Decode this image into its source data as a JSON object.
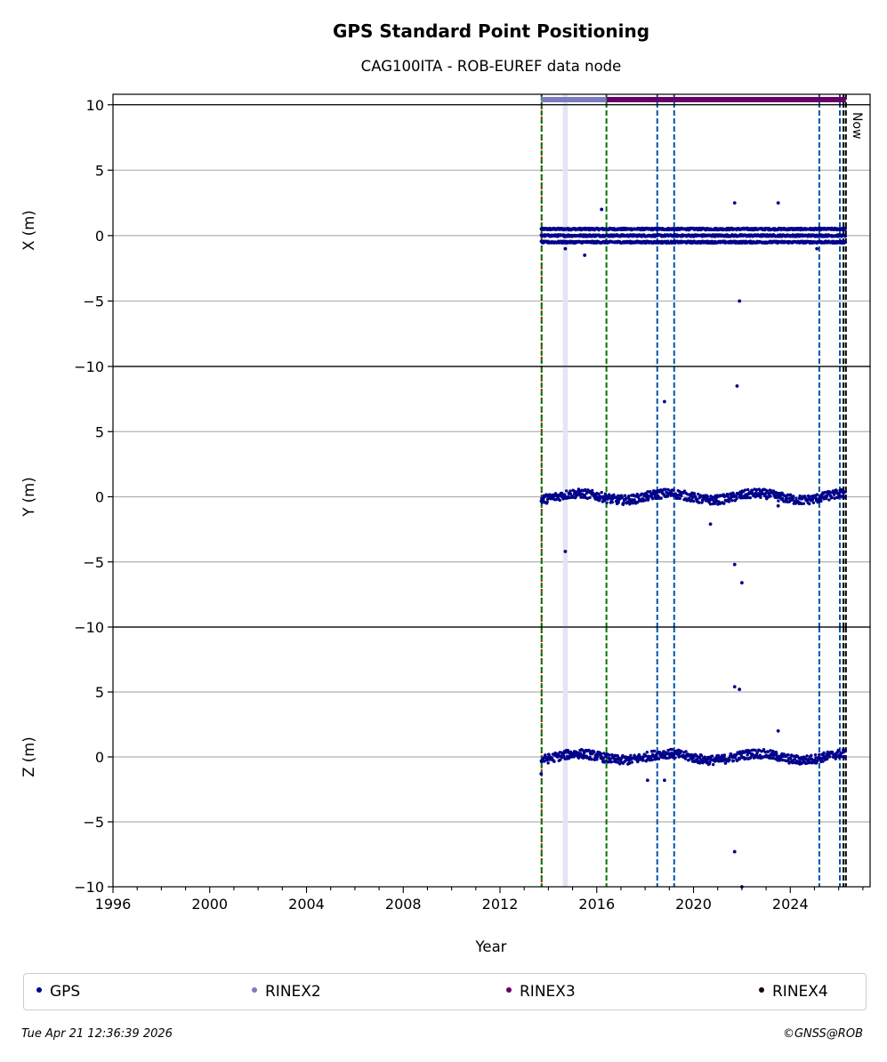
{
  "chart_data": {
    "type": "scatter",
    "title": "GPS Standard Point Positioning",
    "subtitle": "CAG100ITA - ROB-EUREF data node",
    "xlabel": "Year",
    "xlim": [
      1996,
      2027.3
    ],
    "x_ticks": [
      "1996",
      "2000",
      "2004",
      "2008",
      "2012",
      "2016",
      "2020",
      "2024"
    ],
    "now_label": "Now",
    "panels": [
      {
        "ylabel": "X (m)",
        "ylim": [
          -10,
          10.8
        ],
        "y_ticks": [
          "−10",
          "−5",
          "0",
          "5",
          "10"
        ],
        "cluster_levels": [
          0.5,
          0,
          -0.5
        ],
        "outliers": [
          [
            2014.7,
            -1.0
          ],
          [
            2015.5,
            -1.5
          ],
          [
            2016.2,
            2.0
          ],
          [
            2021.7,
            2.5
          ],
          [
            2021.9,
            -5.0
          ],
          [
            2023.5,
            2.5
          ],
          [
            2025.1,
            -1.0
          ]
        ]
      },
      {
        "ylabel": "Y (m)",
        "ylim": [
          -10,
          10
        ],
        "y_ticks": [
          "−10",
          "−5",
          "0",
          "5"
        ],
        "cluster_levels": [
          0
        ],
        "outliers": [
          [
            2014.7,
            -4.2
          ],
          [
            2018.8,
            7.3
          ],
          [
            2020.7,
            -2.1
          ],
          [
            2021.7,
            -5.2
          ],
          [
            2021.8,
            8.5
          ],
          [
            2022.0,
            -6.6
          ],
          [
            2023.5,
            -0.7
          ]
        ]
      },
      {
        "ylabel": "Z (m)",
        "ylim": [
          -10,
          10
        ],
        "y_ticks": [
          "−10",
          "−5",
          "0",
          "5"
        ],
        "cluster_levels": [
          0
        ],
        "outliers": [
          [
            2013.7,
            -1.3
          ],
          [
            2018.1,
            -1.8
          ],
          [
            2018.8,
            -1.8
          ],
          [
            2021.7,
            -7.3
          ],
          [
            2021.7,
            5.4
          ],
          [
            2021.9,
            5.2
          ],
          [
            2022.0,
            -10.0
          ],
          [
            2023.5,
            2.0
          ]
        ]
      }
    ],
    "gps_range": [
      2013.7,
      2026.3
    ],
    "rinex_bars": [
      {
        "name": "RINEX2",
        "start": 2013.7,
        "end": 2016.4,
        "color": "#7b7bbf"
      },
      {
        "name": "RINEX3",
        "start": 2016.4,
        "end": 2026.3,
        "color": "#660066"
      }
    ],
    "vlines": [
      {
        "x": 2013.72,
        "color": "#cc0000",
        "style": "dotted"
      },
      {
        "x": 2013.72,
        "color": "#007700",
        "style": "dashed"
      },
      {
        "x": 2016.4,
        "color": "#007700",
        "style": "dashed"
      },
      {
        "x": 2018.5,
        "color": "#0055aa",
        "style": "dashed"
      },
      {
        "x": 2019.2,
        "color": "#0055aa",
        "style": "dashed"
      },
      {
        "x": 2025.2,
        "color": "#0055aa",
        "style": "dashed"
      },
      {
        "x": 2026.05,
        "color": "#0055aa",
        "style": "dashed"
      },
      {
        "x": 2026.2,
        "color": "#000000",
        "style": "dashed"
      },
      {
        "x": 2026.3,
        "color": "#000000",
        "style": "dashed"
      }
    ],
    "shaded_span": [
      2014.6,
      2014.8
    ],
    "legend": [
      {
        "label": "GPS",
        "color": "#00008b"
      },
      {
        "label": "RINEX2",
        "color": "#7b7bbf"
      },
      {
        "label": "RINEX3",
        "color": "#660066"
      },
      {
        "label": "RINEX4",
        "color": "#1a0010"
      }
    ],
    "grid": true,
    "legend_position": "bottom"
  },
  "footer": {
    "timestamp": "Tue Apr 21 12:36:39 2026",
    "credit": "©GNSS@ROB"
  }
}
